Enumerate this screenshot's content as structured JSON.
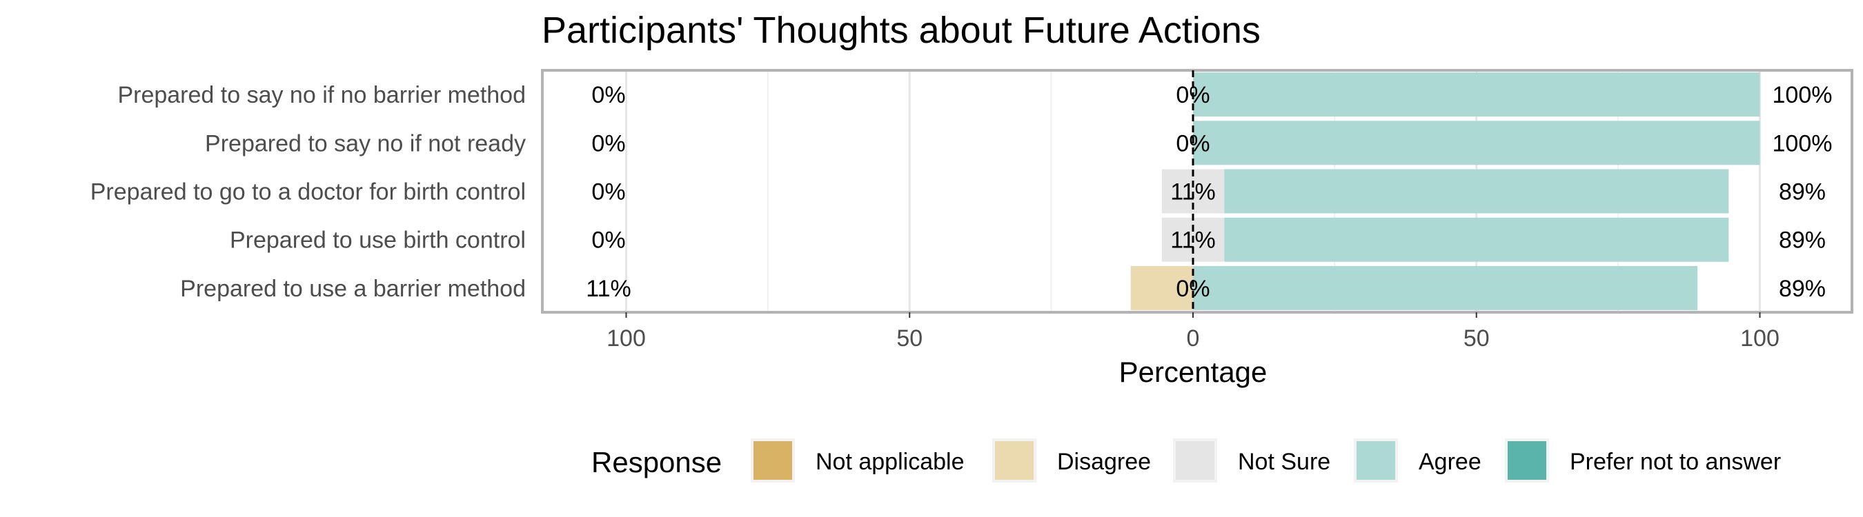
{
  "chart_data": {
    "type": "bar",
    "title": "Participants' Thoughts about  Future Actions",
    "xlabel": "Percentage",
    "xlim": [
      -100,
      100
    ],
    "xticks": [
      {
        "value": -100,
        "label": "100"
      },
      {
        "value": -50,
        "label": "50"
      },
      {
        "value": 0,
        "label": "0"
      },
      {
        "value": 50,
        "label": "50"
      },
      {
        "value": 100,
        "label": "100"
      }
    ],
    "grid": true,
    "legend_title": "Response",
    "legend_position": "bottom",
    "responses": [
      {
        "name": "Not applicable",
        "color": "#D8B365"
      },
      {
        "name": "Disagree",
        "color": "#EBD9B0"
      },
      {
        "name": "Not Sure",
        "color": "#E5E5E5"
      },
      {
        "name": "Agree",
        "color": "#ADD9D5"
      },
      {
        "name": "Prefer not to answer",
        "color": "#5AB4AC"
      }
    ],
    "rows": [
      {
        "category": "Prepared to say no if no barrier method",
        "not_applicable": 0,
        "disagree": 0,
        "not_sure": 0,
        "agree": 100,
        "prefer_not": 0,
        "low_label": "0%",
        "neutral_label": "0%",
        "high_label": "100%"
      },
      {
        "category": "Prepared to say no if not ready",
        "not_applicable": 0,
        "disagree": 0,
        "not_sure": 0,
        "agree": 100,
        "prefer_not": 0,
        "low_label": "0%",
        "neutral_label": "0%",
        "high_label": "100%"
      },
      {
        "category": "Prepared to go to a doctor for birth control",
        "not_applicable": 0,
        "disagree": 0,
        "not_sure": 11,
        "agree": 89,
        "prefer_not": 0,
        "low_label": "0%",
        "neutral_label": "11%",
        "high_label": "89%"
      },
      {
        "category": "Prepared to use birth control",
        "not_applicable": 0,
        "disagree": 0,
        "not_sure": 11,
        "agree": 89,
        "prefer_not": 0,
        "low_label": "0%",
        "neutral_label": "11%",
        "high_label": "89%"
      },
      {
        "category": "Prepared to use a barrier method",
        "not_applicable": 0,
        "disagree": 11,
        "not_sure": 0,
        "agree": 89,
        "prefer_not": 0,
        "low_label": "11%",
        "neutral_label": "0%",
        "high_label": "89%"
      }
    ]
  }
}
